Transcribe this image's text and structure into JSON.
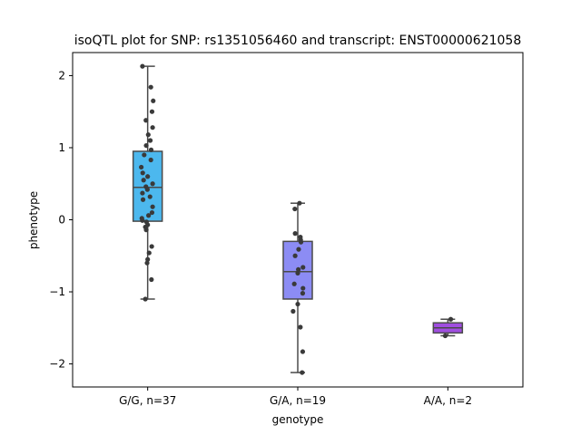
{
  "chart_data": {
    "type": "box",
    "title": "isoQTL plot for SNP: rs1351056460 and transcript: ENST00000621058",
    "xlabel": "genotype",
    "ylabel": "phenotype",
    "ylim": [
      -2.32,
      2.32
    ],
    "yticks": [
      -2,
      -1,
      0,
      1,
      2
    ],
    "ytick_labels": [
      "−2",
      "−1",
      "0",
      "1",
      "2"
    ],
    "grid": false,
    "categories": [
      "G/G, n=37",
      "G/A, n=19",
      "A/A, n=2"
    ],
    "colors": [
      "#4cb8ee",
      "#8c8cf4",
      "#a04ee0"
    ],
    "point_color": "#3a3a3a",
    "box_edge_color": "#4a4a4a",
    "boxes": [
      {
        "q1": -0.02,
        "median": 0.45,
        "q3": 0.95,
        "whisker_low": -1.1,
        "whisker_high": 2.13
      },
      {
        "q1": -1.1,
        "median": -0.72,
        "q3": -0.3,
        "whisker_low": -2.12,
        "whisker_high": 0.23
      },
      {
        "q1": -1.57,
        "median": -1.5,
        "q3": -1.43,
        "whisker_low": -1.61,
        "whisker_high": -1.38
      }
    ],
    "points": [
      {
        "x_offset": -0.18,
        "y": 2.13
      },
      {
        "x_offset": 0.11,
        "y": 1.84
      },
      {
        "x_offset": 0.19,
        "y": 1.65
      },
      {
        "x_offset": 0.15,
        "y": 1.5
      },
      {
        "x_offset": -0.06,
        "y": 1.38
      },
      {
        "x_offset": 0.17,
        "y": 1.28
      },
      {
        "x_offset": 0.02,
        "y": 1.18
      },
      {
        "x_offset": 0.09,
        "y": 1.1
      },
      {
        "x_offset": -0.05,
        "y": 1.03
      },
      {
        "x_offset": 0.12,
        "y": 0.97
      },
      {
        "x_offset": -0.12,
        "y": 0.9
      },
      {
        "x_offset": 0.11,
        "y": 0.83
      },
      {
        "x_offset": -0.22,
        "y": 0.73
      },
      {
        "x_offset": -0.17,
        "y": 0.65
      },
      {
        "x_offset": 0.0,
        "y": 0.6
      },
      {
        "x_offset": -0.14,
        "y": 0.55
      },
      {
        "x_offset": 0.17,
        "y": 0.5
      },
      {
        "x_offset": -0.06,
        "y": 0.46
      },
      {
        "x_offset": -0.01,
        "y": 0.42
      },
      {
        "x_offset": -0.18,
        "y": 0.37
      },
      {
        "x_offset": 0.08,
        "y": 0.32
      },
      {
        "x_offset": -0.16,
        "y": 0.28
      },
      {
        "x_offset": 0.17,
        "y": 0.18
      },
      {
        "x_offset": 0.15,
        "y": 0.1
      },
      {
        "x_offset": 0.03,
        "y": 0.06
      },
      {
        "x_offset": -0.2,
        "y": 0.02
      },
      {
        "x_offset": -0.18,
        "y": -0.01
      },
      {
        "x_offset": -0.04,
        "y": -0.03
      },
      {
        "x_offset": 0.0,
        "y": -0.07
      },
      {
        "x_offset": -0.08,
        "y": -0.1
      },
      {
        "x_offset": -0.05,
        "y": -0.14
      },
      {
        "x_offset": 0.14,
        "y": -0.37
      },
      {
        "x_offset": 0.05,
        "y": -0.46
      },
      {
        "x_offset": 0.0,
        "y": -0.55
      },
      {
        "x_offset": -0.02,
        "y": -0.6
      },
      {
        "x_offset": 0.13,
        "y": -0.83
      },
      {
        "x_offset": -0.08,
        "y": -1.1
      },
      {
        "x_offset": -0.1,
        "y": 0.15,
        "group": 1
      },
      {
        "x_offset": 0.06,
        "y": 0.23,
        "group": 1
      },
      {
        "x_offset": -0.09,
        "y": -0.19,
        "group": 1
      },
      {
        "x_offset": 0.09,
        "y": -0.24,
        "group": 1
      },
      {
        "x_offset": 0.1,
        "y": -0.28,
        "group": 1
      },
      {
        "x_offset": 0.11,
        "y": -0.31,
        "group": 1
      },
      {
        "x_offset": 0.03,
        "y": -0.41,
        "group": 1
      },
      {
        "x_offset": -0.09,
        "y": -0.5,
        "group": 1
      },
      {
        "x_offset": 0.18,
        "y": -0.66,
        "group": 1
      },
      {
        "x_offset": 0.02,
        "y": -0.69,
        "group": 1
      },
      {
        "x_offset": 0.0,
        "y": -0.74,
        "group": 1
      },
      {
        "x_offset": -0.12,
        "y": -0.89,
        "group": 1
      },
      {
        "x_offset": 0.18,
        "y": -0.95,
        "group": 1
      },
      {
        "x_offset": 0.17,
        "y": -1.02,
        "group": 1
      },
      {
        "x_offset": 0.0,
        "y": -1.17,
        "group": 1
      },
      {
        "x_offset": -0.16,
        "y": -1.27,
        "group": 1
      },
      {
        "x_offset": 0.09,
        "y": -1.49,
        "group": 1
      },
      {
        "x_offset": 0.17,
        "y": -1.83,
        "group": 1
      },
      {
        "x_offset": 0.15,
        "y": -2.12,
        "group": 1
      },
      {
        "x_offset": 0.1,
        "y": -1.38,
        "group": 2
      },
      {
        "x_offset": -0.09,
        "y": -1.61,
        "group": 2
      }
    ]
  }
}
